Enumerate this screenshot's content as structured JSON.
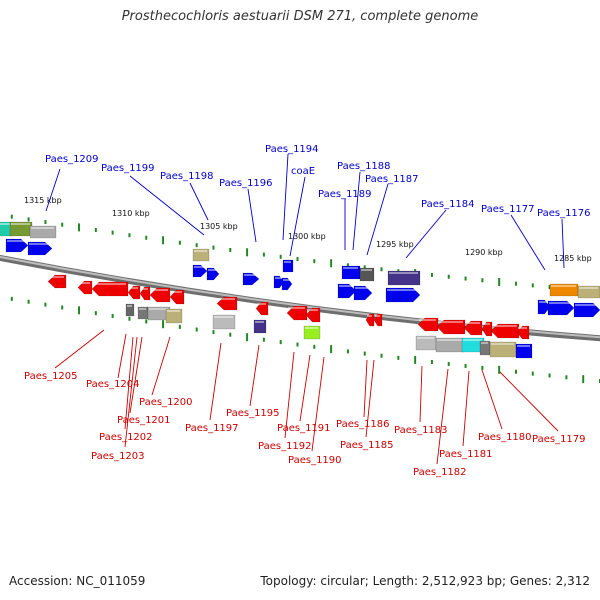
{
  "header": {
    "title": "Prosthecochloris aestuarii DSM 271, complete genome"
  },
  "footer": {
    "accession": "Accession: NC_011059",
    "stats": "Topology: circular; Length: 2,512,923 bp; Genes: 2,312"
  },
  "scale_labels": [
    "1315 kbp",
    "1310 kbp",
    "1305 kbp",
    "1300 kbp",
    "1295 kbp",
    "1290 kbp",
    "1285 kbp"
  ],
  "forward_genes": [
    "Paes_1209",
    "Paes_1199",
    "Paes_1198",
    "Paes_1196",
    "Paes_1194",
    "coaE",
    "Paes_1188",
    "Paes_1189",
    "Paes_1187",
    "Paes_1184",
    "Paes_1177",
    "Paes_1176"
  ],
  "reverse_genes": [
    "Paes_1205",
    "Paes_1204",
    "Paes_1201",
    "Paes_1202",
    "Paes_1203",
    "Paes_1200",
    "Paes_1197",
    "Paes_1195",
    "Paes_1192",
    "Paes_1191",
    "Paes_1190",
    "Paes_1186",
    "Paes_1185",
    "Paes_1183",
    "Paes_1182",
    "Paes_1181",
    "Paes_1180",
    "Paes_1179"
  ],
  "colors": {
    "forward_label": "#0000cc",
    "reverse_label": "#cc0000",
    "forward_gene": "#0000ee",
    "reverse_gene": "#ee0000",
    "backbone": "#888888",
    "tick": "#228822"
  }
}
